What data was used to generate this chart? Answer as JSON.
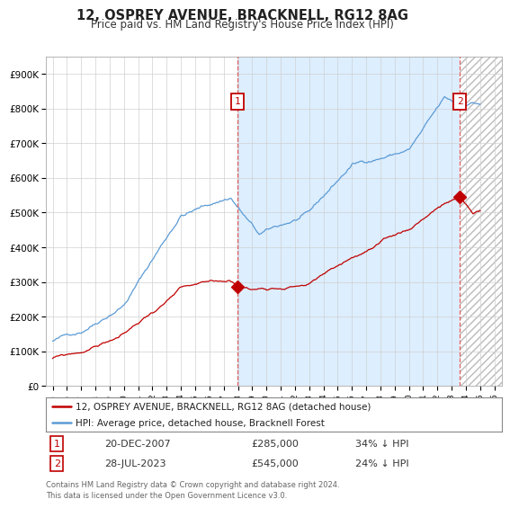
{
  "title": "12, OSPREY AVENUE, BRACKNELL, RG12 8AG",
  "subtitle": "Price paid vs. HM Land Registry's House Price Index (HPI)",
  "hpi_label": "HPI: Average price, detached house, Bracknell Forest",
  "property_label": "12, OSPREY AVENUE, BRACKNELL, RG12 8AG (detached house)",
  "footer": "Contains HM Land Registry data © Crown copyright and database right 2024.\nThis data is licensed under the Open Government Licence v3.0.",
  "annotation1": {
    "num": "1",
    "date": "20-DEC-2007",
    "price": "£285,000",
    "note": "34% ↓ HPI"
  },
  "annotation2": {
    "num": "2",
    "date": "28-JUL-2023",
    "price": "£545,000",
    "note": "24% ↓ HPI"
  },
  "vline1_x": 2007.97,
  "vline2_x": 2023.57,
  "sale1_x": 2007.97,
  "sale1_y": 285000,
  "sale2_x": 2023.57,
  "sale2_y": 545000,
  "ylim": [
    0,
    950000
  ],
  "xlim": [
    1994.5,
    2026.5
  ],
  "hpi_color": "#5b9bd5",
  "property_color": "#c00000",
  "vline_color": "#e06060",
  "background_color": "#ffffff",
  "grid_color": "#d0d0d0",
  "shading_color": "#ddeeff",
  "hatch_color": "#dddddd"
}
